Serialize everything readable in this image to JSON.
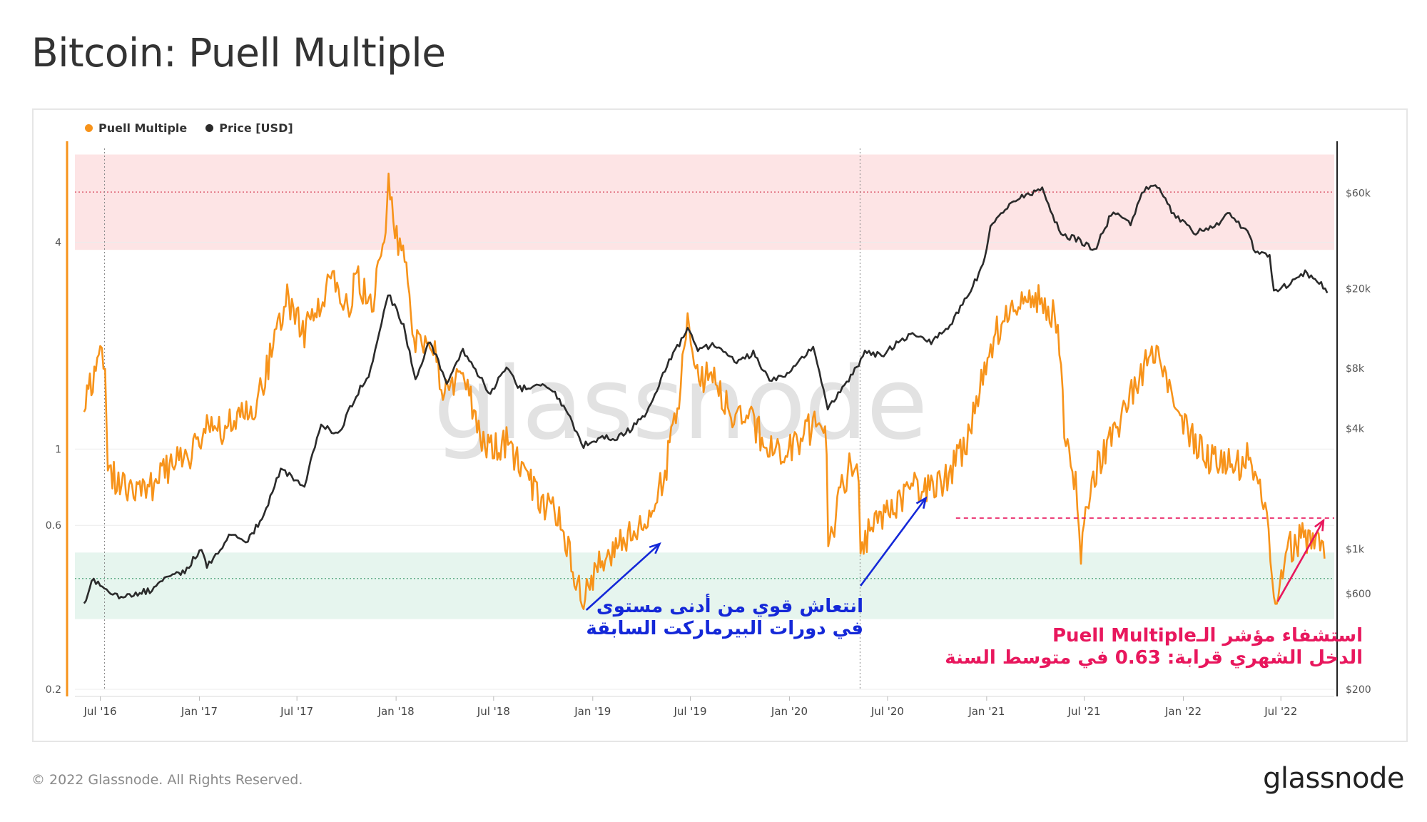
{
  "title": "Bitcoin: Puell Multiple",
  "legend": {
    "puell": "Puell Multiple",
    "price": "Price [USD]"
  },
  "watermark": "glassnode",
  "footer": {
    "copyright": "© 2022 Glassnode. All Rights Reserved.",
    "brand": "glassnode"
  },
  "annotations": {
    "blue_line1": "انتعاش قوي من أدنى مستوى",
    "blue_line2": "في دورات البيرماركت السابقة",
    "pink_line1": "استشفاء مؤشر الـPuell Multiple",
    "pink_line2": "الدخل الشهري قرابة: 0.63 في متوسط السنة"
  },
  "colors": {
    "puell": "#f7931a",
    "price": "#2b2b2b",
    "red_band": "#fde4e5",
    "green_band": "#e6f5ee",
    "blue_annotation": "#1428d8",
    "pink_annotation": "#e8175d"
  },
  "chart_data": {
    "type": "line",
    "title": "Bitcoin: Puell Multiple",
    "x_ticks": [
      "Jul '16",
      "Jan '17",
      "Jul '17",
      "Jan '18",
      "Jul '18",
      "Jan '19",
      "Jul '19",
      "Jan '20",
      "Jul '20",
      "Jan '21",
      "Jul '21",
      "Jan '22",
      "Jul '22"
    ],
    "y_left_ticks": [
      "4",
      "1",
      "0.6",
      "0.2"
    ],
    "y_left_scale": "log",
    "y_left_range": [
      0.2,
      7.5
    ],
    "y_right_ticks": [
      "$60k",
      "$20k",
      "$8k",
      "$4k",
      "$1k",
      "$600",
      "$200"
    ],
    "y_right_scale": "log",
    "y_right_range": [
      200,
      100000
    ],
    "zones": {
      "red": [
        3.8,
        7.2
      ],
      "green": [
        0.32,
        0.5
      ]
    },
    "reference_lines": {
      "left_dotted": [
        5.6,
        0.42
      ],
      "pink_dashed": 0.63
    },
    "series": [
      {
        "name": "Puell Multiple",
        "axis": "left",
        "points": [
          [
            "2016-06-01",
            1.4
          ],
          [
            "2016-06-20",
            1.6
          ],
          [
            "2016-07-01",
            2.0
          ],
          [
            "2016-07-10",
            1.75
          ],
          [
            "2016-07-15",
            0.85
          ],
          [
            "2016-08-15",
            0.78
          ],
          [
            "2016-09-15",
            0.74
          ],
          [
            "2016-10-15",
            0.8
          ],
          [
            "2016-11-15",
            0.92
          ],
          [
            "2016-12-15",
            0.98
          ],
          [
            "2017-01-15",
            1.2
          ],
          [
            "2017-02-15",
            1.1
          ],
          [
            "2017-03-15",
            1.3
          ],
          [
            "2017-04-15",
            1.35
          ],
          [
            "2017-05-15",
            1.9
          ],
          [
            "2017-06-10",
            2.8
          ],
          [
            "2017-07-15",
            2.2
          ],
          [
            "2017-08-15",
            2.6
          ],
          [
            "2017-09-05",
            3.2
          ],
          [
            "2017-09-25",
            2.4
          ],
          [
            "2017-10-20",
            3.1
          ],
          [
            "2017-11-20",
            2.7
          ],
          [
            "2017-12-10",
            4.2
          ],
          [
            "2017-12-18",
            6.1
          ],
          [
            "2018-01-05",
            3.9
          ],
          [
            "2018-01-20",
            3.3
          ],
          [
            "2018-02-06",
            2.0
          ],
          [
            "2018-03-05",
            2.1
          ],
          [
            "2018-04-01",
            1.45
          ],
          [
            "2018-05-05",
            1.65
          ],
          [
            "2018-06-15",
            1.0
          ],
          [
            "2018-07-25",
            1.05
          ],
          [
            "2018-08-25",
            0.88
          ],
          [
            "2018-09-25",
            0.7
          ],
          [
            "2018-10-25",
            0.66
          ],
          [
            "2018-11-25",
            0.46
          ],
          [
            "2018-12-15",
            0.36
          ],
          [
            "2019-01-10",
            0.45
          ],
          [
            "2019-02-10",
            0.52
          ],
          [
            "2019-03-10",
            0.56
          ],
          [
            "2019-04-10",
            0.62
          ],
          [
            "2019-05-15",
            0.85
          ],
          [
            "2019-06-10",
            1.4
          ],
          [
            "2019-06-26",
            2.3
          ],
          [
            "2019-07-20",
            1.65
          ],
          [
            "2019-08-20",
            1.55
          ],
          [
            "2019-09-20",
            1.25
          ],
          [
            "2019-10-25",
            1.2
          ],
          [
            "2019-11-25",
            1.0
          ],
          [
            "2019-12-25",
            0.95
          ],
          [
            "2020-01-25",
            1.1
          ],
          [
            "2020-02-25",
            1.2
          ],
          [
            "2020-03-10",
            1.05
          ],
          [
            "2020-03-13",
            0.5
          ],
          [
            "2020-04-10",
            0.8
          ],
          [
            "2020-05-05",
            1.0
          ],
          [
            "2020-05-12",
            0.52
          ],
          [
            "2020-06-10",
            0.62
          ],
          [
            "2020-07-20",
            0.68
          ],
          [
            "2020-08-20",
            0.78
          ],
          [
            "2020-09-20",
            0.76
          ],
          [
            "2020-10-20",
            0.82
          ],
          [
            "2020-11-25",
            1.05
          ],
          [
            "2020-12-25",
            1.6
          ],
          [
            "2021-01-20",
            2.2
          ],
          [
            "2021-02-20",
            2.6
          ],
          [
            "2021-03-10",
            2.9
          ],
          [
            "2021-04-10",
            2.7
          ],
          [
            "2021-05-10",
            2.4
          ],
          [
            "2021-05-25",
            1.2
          ],
          [
            "2021-06-15",
            0.78
          ],
          [
            "2021-06-25",
            0.5
          ],
          [
            "2021-07-15",
            0.82
          ],
          [
            "2021-08-15",
            1.05
          ],
          [
            "2021-09-15",
            1.3
          ],
          [
            "2021-10-20",
            1.75
          ],
          [
            "2021-11-15",
            1.85
          ],
          [
            "2021-12-15",
            1.35
          ],
          [
            "2022-01-15",
            1.1
          ],
          [
            "2022-02-15",
            0.95
          ],
          [
            "2022-03-15",
            0.9
          ],
          [
            "2022-04-15",
            0.9
          ],
          [
            "2022-05-05",
            0.95
          ],
          [
            "2022-05-20",
            0.82
          ],
          [
            "2022-06-05",
            0.65
          ],
          [
            "2022-06-18",
            0.36
          ],
          [
            "2022-07-10",
            0.5
          ],
          [
            "2022-08-10",
            0.56
          ],
          [
            "2022-09-01",
            0.55
          ],
          [
            "2022-09-20",
            0.48
          ]
        ]
      },
      {
        "name": "Price [USD]",
        "axis": "right",
        "points": [
          [
            "2016-06-01",
            530
          ],
          [
            "2016-06-15",
            700
          ],
          [
            "2016-07-01",
            670
          ],
          [
            "2016-08-01",
            580
          ],
          [
            "2016-09-01",
            600
          ],
          [
            "2016-10-01",
            620
          ],
          [
            "2016-11-01",
            720
          ],
          [
            "2016-12-01",
            760
          ],
          [
            "2017-01-05",
            1000
          ],
          [
            "2017-01-15",
            820
          ],
          [
            "2017-03-01",
            1200
          ],
          [
            "2017-04-01",
            1100
          ],
          [
            "2017-05-01",
            1500
          ],
          [
            "2017-06-01",
            2500
          ],
          [
            "2017-07-15",
            2100
          ],
          [
            "2017-08-15",
            4200
          ],
          [
            "2017-09-15",
            3700
          ],
          [
            "2017-10-15",
            5600
          ],
          [
            "2017-11-15",
            7800
          ],
          [
            "2017-12-17",
            19000
          ],
          [
            "2018-01-15",
            13000
          ],
          [
            "2018-02-06",
            7000
          ],
          [
            "2018-03-05",
            11000
          ],
          [
            "2018-04-05",
            6800
          ],
          [
            "2018-05-05",
            9700
          ],
          [
            "2018-06-25",
            6000
          ],
          [
            "2018-07-25",
            8300
          ],
          [
            "2018-08-15",
            6300
          ],
          [
            "2018-09-15",
            6500
          ],
          [
            "2018-10-15",
            6400
          ],
          [
            "2018-11-20",
            4500
          ],
          [
            "2018-12-15",
            3300
          ],
          [
            "2019-01-15",
            3600
          ],
          [
            "2019-02-15",
            3600
          ],
          [
            "2019-03-15",
            4000
          ],
          [
            "2019-04-15",
            5000
          ],
          [
            "2019-05-15",
            7900
          ],
          [
            "2019-06-26",
            12500
          ],
          [
            "2019-07-15",
            10000
          ],
          [
            "2019-08-15",
            10500
          ],
          [
            "2019-09-25",
            8500
          ],
          [
            "2019-10-26",
            9500
          ],
          [
            "2019-11-25",
            7000
          ],
          [
            "2019-12-20",
            7200
          ],
          [
            "2020-01-20",
            8700
          ],
          [
            "2020-02-14",
            10300
          ],
          [
            "2020-03-12",
            5000
          ],
          [
            "2020-04-20",
            7000
          ],
          [
            "2020-05-20",
            9500
          ],
          [
            "2020-06-20",
            9300
          ],
          [
            "2020-07-25",
            11000
          ],
          [
            "2020-08-20",
            11800
          ],
          [
            "2020-09-20",
            10800
          ],
          [
            "2020-10-25",
            13000
          ],
          [
            "2020-11-25",
            18000
          ],
          [
            "2020-12-25",
            26000
          ],
          [
            "2021-01-08",
            40000
          ],
          [
            "2021-02-20",
            55000
          ],
          [
            "2021-03-15",
            58000
          ],
          [
            "2021-04-14",
            63000
          ],
          [
            "2021-05-19",
            37000
          ],
          [
            "2021-06-20",
            35000
          ],
          [
            "2021-07-20",
            31000
          ],
          [
            "2021-08-20",
            47000
          ],
          [
            "2021-09-10",
            46000
          ],
          [
            "2021-09-25",
            42000
          ],
          [
            "2021-10-20",
            62000
          ],
          [
            "2021-11-10",
            67000
          ],
          [
            "2021-12-10",
            49000
          ],
          [
            "2022-01-20",
            38000
          ],
          [
            "2022-02-20",
            40000
          ],
          [
            "2022-03-28",
            47000
          ],
          [
            "2022-04-30",
            38500
          ],
          [
            "2022-05-15",
            30000
          ],
          [
            "2022-06-10",
            29000
          ],
          [
            "2022-06-18",
            19000
          ],
          [
            "2022-07-15",
            21000
          ],
          [
            "2022-08-15",
            24000
          ],
          [
            "2022-09-10",
            21500
          ],
          [
            "2022-09-25",
            19000
          ]
        ]
      }
    ]
  }
}
